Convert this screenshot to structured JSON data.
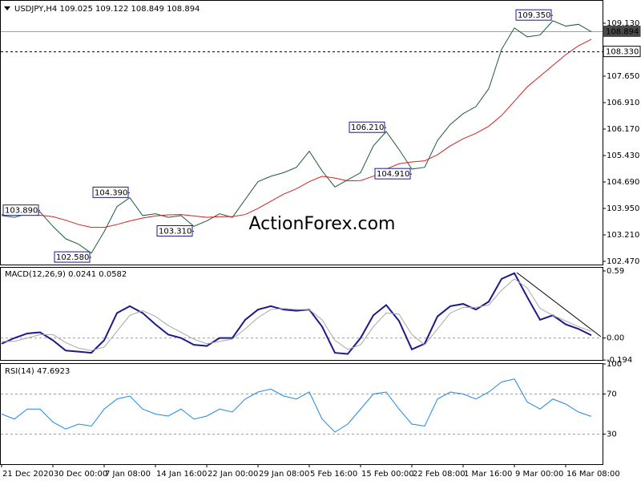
{
  "chart_data": [
    {
      "type": "line",
      "title": "USDJPY,H4  109.025 109.122 108.849 108.894",
      "watermark": "ActionForex.com",
      "ylim": [
        102.38,
        109.78
      ],
      "yticks": [
        {
          "value": 109.13,
          "label": "109.130"
        },
        {
          "value": 107.65,
          "label": "107.650"
        },
        {
          "value": 106.91,
          "label": "106.910"
        },
        {
          "value": 106.17,
          "label": "106.170"
        },
        {
          "value": 105.43,
          "label": "105.430"
        },
        {
          "value": 104.69,
          "label": "104.690"
        },
        {
          "value": 103.95,
          "label": "103.950"
        },
        {
          "value": 103.21,
          "label": "103.210"
        },
        {
          "value": 102.47,
          "label": "102.470"
        }
      ],
      "levels": [
        {
          "value": 108.894,
          "label": "108.894",
          "style": "solid"
        },
        {
          "value": 108.33,
          "label": "108.330",
          "style": "dashed"
        }
      ],
      "series": [
        {
          "color": "#1f5c3a",
          "values": [
            103.75,
            103.7,
            103.8,
            103.85,
            103.45,
            103.1,
            102.95,
            102.7,
            103.3,
            104.0,
            104.25,
            103.75,
            103.8,
            103.7,
            103.75,
            103.45,
            103.6,
            103.8,
            103.7,
            104.2,
            104.7,
            104.85,
            104.95,
            105.1,
            105.55,
            105.0,
            104.55,
            104.75,
            104.95,
            105.7,
            106.1,
            105.6,
            105.05,
            105.1,
            105.85,
            106.3,
            106.6,
            106.8,
            107.3,
            108.4,
            109.0,
            108.75,
            108.8,
            109.2,
            109.05,
            109.1,
            108.894
          ]
        },
        {
          "color": "#d42020",
          "values": [
            103.78,
            103.77,
            103.76,
            103.76,
            103.72,
            103.62,
            103.5,
            103.42,
            103.42,
            103.5,
            103.6,
            103.68,
            103.74,
            103.77,
            103.78,
            103.74,
            103.7,
            103.72,
            103.72,
            103.78,
            103.95,
            104.15,
            104.35,
            104.5,
            104.7,
            104.85,
            104.8,
            104.72,
            104.73,
            104.85,
            105.05,
            105.2,
            105.25,
            105.28,
            105.45,
            105.7,
            105.9,
            106.05,
            106.25,
            106.55,
            106.95,
            107.35,
            107.65,
            107.95,
            108.25,
            108.5,
            108.68
          ]
        }
      ],
      "annotations": [
        {
          "index": 3,
          "value": 103.89,
          "label": "103.890"
        },
        {
          "index": 7,
          "value": 102.58,
          "label": "102.580"
        },
        {
          "index": 10,
          "value": 104.39,
          "label": "104.390"
        },
        {
          "index": 15,
          "value": 103.31,
          "label": "103.310"
        },
        {
          "index": 30,
          "value": 106.21,
          "label": "106.210"
        },
        {
          "index": 32,
          "value": 104.91,
          "label": "104.910"
        },
        {
          "index": 43,
          "value": 109.35,
          "label": "109.350"
        }
      ]
    },
    {
      "type": "line",
      "title": "MACD(12,26,9) 0.0241 0.0582",
      "ylim": [
        -0.2,
        0.625
      ],
      "yticks": [
        0.59,
        {
          "value": 0,
          "label": "0.00"
        },
        -0.194
      ],
      "levels": [
        0
      ],
      "series": [
        {
          "color": "#1a1a8c",
          "values": [
            -0.05,
            0.0,
            0.04,
            0.05,
            -0.02,
            -0.11,
            -0.12,
            -0.13,
            -0.02,
            0.22,
            0.28,
            0.22,
            0.12,
            0.03,
            0.0,
            -0.06,
            -0.07,
            0.0,
            0.0,
            0.16,
            0.25,
            0.28,
            0.25,
            0.24,
            0.25,
            0.1,
            -0.13,
            -0.14,
            0.0,
            0.2,
            0.29,
            0.15,
            -0.1,
            -0.05,
            0.19,
            0.28,
            0.3,
            0.25,
            0.32,
            0.52,
            0.57,
            0.36,
            0.16,
            0.2,
            0.12,
            0.08,
            0.0241
          ]
        },
        {
          "color": "#a8a8a8",
          "values": [
            -0.03,
            -0.03,
            0.0,
            0.03,
            0.03,
            -0.04,
            -0.09,
            -0.11,
            -0.08,
            0.06,
            0.2,
            0.24,
            0.19,
            0.11,
            0.05,
            -0.01,
            -0.05,
            -0.03,
            -0.01,
            0.08,
            0.18,
            0.25,
            0.26,
            0.25,
            0.25,
            0.16,
            -0.02,
            -0.1,
            -0.06,
            0.1,
            0.22,
            0.21,
            0.03,
            -0.06,
            0.08,
            0.22,
            0.27,
            0.27,
            0.29,
            0.42,
            0.52,
            0.44,
            0.26,
            0.2,
            0.15,
            0.1,
            0.0582
          ]
        }
      ]
    },
    {
      "type": "line",
      "title": "RSI(14) 47.6923",
      "ylim": [
        0,
        100
      ],
      "yticks": [
        100,
        70,
        30
      ],
      "levels": [
        70,
        30
      ],
      "categories": [
        "21 Dec 2020",
        null,
        null,
        null,
        "30 Dec 00:00",
        null,
        null,
        null,
        "7 Jan 08:00",
        null,
        null,
        null,
        "14 Jan 16:00",
        null,
        null,
        null,
        "22 Jan 00:00",
        null,
        null,
        null,
        "29 Jan 08:00",
        null,
        null,
        null,
        "5 Feb 16:00",
        null,
        null,
        null,
        "15 Feb 00:00",
        null,
        null,
        null,
        "22 Feb 08:00",
        null,
        null,
        null,
        "1 Mar 16:00",
        null,
        null,
        null,
        "9 Mar 00:00",
        null,
        null,
        null,
        "16 Mar 08:00",
        null,
        null
      ],
      "series": [
        {
          "color": "#1e88e5",
          "values": [
            50,
            45,
            55,
            55,
            42,
            35,
            40,
            38,
            55,
            65,
            68,
            55,
            50,
            48,
            55,
            45,
            48,
            55,
            52,
            65,
            72,
            75,
            68,
            65,
            72,
            45,
            32,
            40,
            55,
            70,
            72,
            55,
            40,
            38,
            65,
            72,
            70,
            65,
            72,
            82,
            85,
            62,
            55,
            65,
            60,
            52,
            47.6923
          ]
        }
      ]
    }
  ]
}
